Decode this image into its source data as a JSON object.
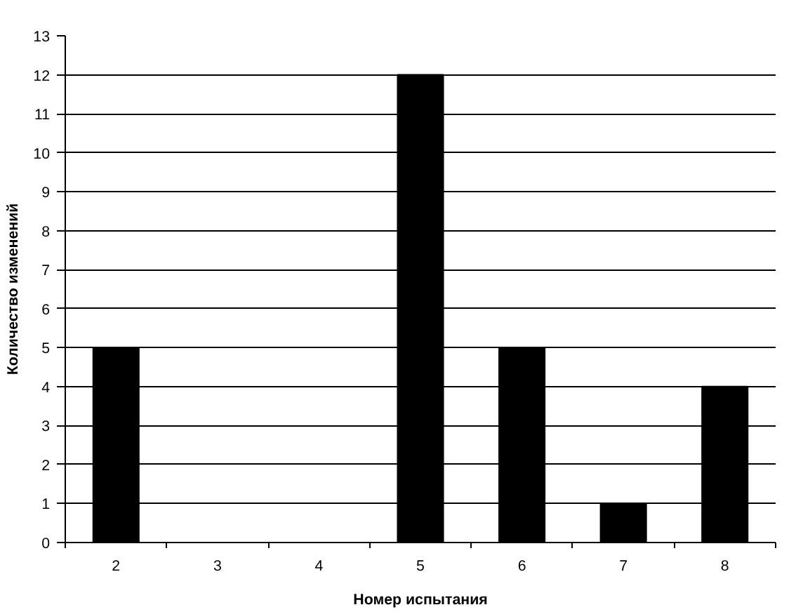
{
  "chart_data": {
    "type": "bar",
    "xlabel": "Номер испытания",
    "ylabel": "Количество изменений",
    "categories": [
      "2",
      "3",
      "4",
      "5",
      "6",
      "7",
      "8"
    ],
    "values": [
      5,
      0,
      0,
      12,
      5,
      1,
      4
    ],
    "color": "#000000",
    "ylim": [
      0,
      13
    ],
    "yticks": [
      0,
      1,
      2,
      3,
      4,
      5,
      6,
      7,
      8,
      9,
      10,
      11,
      12,
      13
    ],
    "grid": "y"
  }
}
